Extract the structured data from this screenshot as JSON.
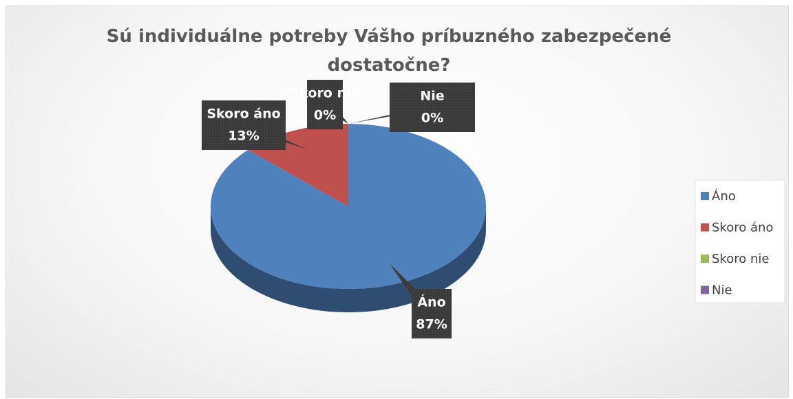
{
  "chart_data": {
    "type": "pie",
    "title": "Sú individuálne potreby Vášho príbuzného zabezpečené dostatočne?",
    "categories": [
      "Áno",
      "Skoro áno",
      "Skoro nie",
      "Nie"
    ],
    "values": [
      87,
      13,
      0,
      0
    ],
    "value_labels": [
      "87%",
      "13%",
      "0%",
      "0%"
    ],
    "colors": [
      "#4f81bd",
      "#c0504d",
      "#9bbb59",
      "#8064a2"
    ],
    "legend": "right"
  }
}
